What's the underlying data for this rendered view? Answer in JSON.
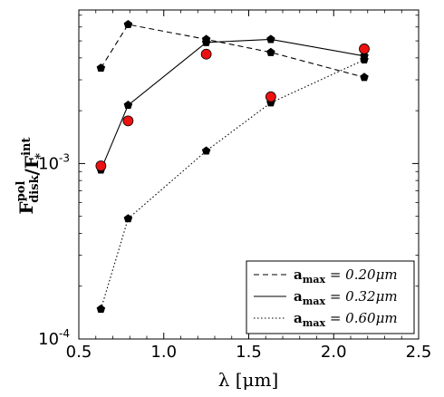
{
  "chart_data": {
    "type": "line",
    "xlabel": "λ [μm]",
    "ylabel": "F_disk^pol / F_*^int",
    "x_ticks": [
      "0.5",
      "1.0",
      "1.5",
      "2.0",
      "2.5"
    ],
    "y_ticks": [
      {
        "base": "10",
        "exp": "-4"
      },
      {
        "base": "10",
        "exp": "-3"
      }
    ],
    "xlim": [
      0.5,
      2.5
    ],
    "ylim": [
      0.0001,
      0.0075
    ],
    "yscale": "log",
    "grid": false,
    "legend_position": "bottom-right",
    "series": [
      {
        "name": "a_max = 0.20μm",
        "linestyle": "dashed",
        "marker": "pentagon",
        "color": "#000000",
        "x": [
          0.63,
          0.79,
          1.25,
          1.63,
          2.18
        ],
        "y": [
          0.0035,
          0.0062,
          0.0051,
          0.0043,
          0.0031
        ]
      },
      {
        "name": "a_max = 0.32μm",
        "linestyle": "solid",
        "marker": "pentagon",
        "color": "#000000",
        "x": [
          0.63,
          0.79,
          1.25,
          1.63,
          2.18
        ],
        "y": [
          0.00092,
          0.00215,
          0.0049,
          0.0051,
          0.0041
        ]
      },
      {
        "name": "a_max = 0.60μm",
        "linestyle": "dotted",
        "marker": "pentagon",
        "color": "#000000",
        "x": [
          0.63,
          0.79,
          1.25,
          1.63,
          2.18
        ],
        "y": [
          0.000148,
          0.000485,
          0.00118,
          0.00222,
          0.0039
        ]
      }
    ],
    "observations": {
      "marker": "circle",
      "color": "#ee1111",
      "x": [
        0.63,
        0.79,
        1.25,
        1.63,
        2.18
      ],
      "y": [
        0.00097,
        0.00175,
        0.0042,
        0.0024,
        0.0045
      ]
    },
    "legend": [
      {
        "label": "a",
        "sub": "max",
        "rest": " = 0.20μm",
        "linestyle": "dashed"
      },
      {
        "label": "a",
        "sub": "max",
        "rest": " = 0.32μm",
        "linestyle": "solid"
      },
      {
        "label": "a",
        "sub": "max",
        "rest": " = 0.60μm",
        "linestyle": "dotted"
      }
    ]
  }
}
